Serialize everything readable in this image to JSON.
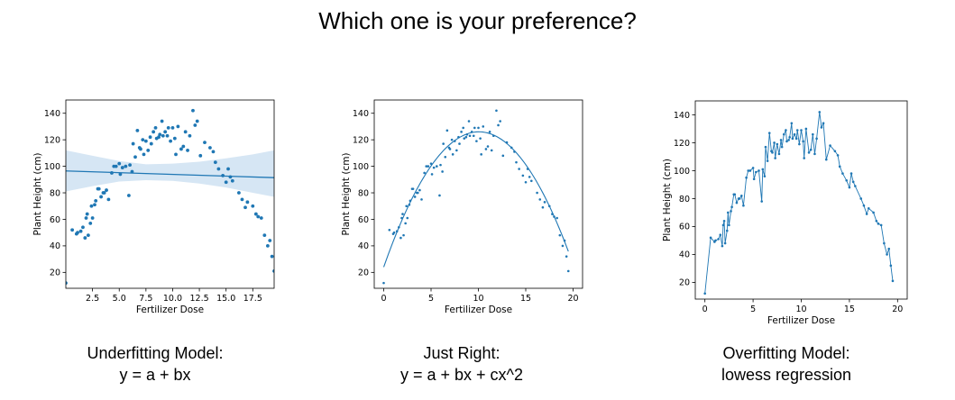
{
  "page": {
    "title": "Which one is your preference?"
  },
  "colors": {
    "points": "#1f77b4",
    "band": "#d6e6f4",
    "line": "#1f77b4"
  },
  "chart_data": [
    {
      "type": "scatter",
      "variant": "linear-regression-with-confidence-band",
      "title": "",
      "xlabel": "Fertilizer Dose",
      "ylabel": "Plant Height (cm)",
      "xlim": [
        0,
        19.5
      ],
      "ylim": [
        8,
        150
      ],
      "xticks": [
        2.5,
        5.0,
        7.5,
        10.0,
        12.5,
        15.0,
        17.5
      ],
      "xtick_labels": [
        "2.5",
        "5.0",
        "7.5",
        "10.0",
        "12.5",
        "15.0",
        "17.5"
      ],
      "yticks": [
        20,
        40,
        60,
        80,
        100,
        120,
        140
      ],
      "ytick_labels": [
        "20",
        "40",
        "60",
        "80",
        "100",
        "120",
        "140"
      ],
      "fit": {
        "intercept": 96.5,
        "slope": -0.26
      },
      "band": {
        "x": [
          0,
          2.5,
          5,
          7.5,
          10,
          12.5,
          15,
          17.5,
          19.5
        ],
        "upper": [
          112,
          108,
          104,
          101.5,
          102,
          103.5,
          106,
          109,
          112
        ],
        "lower": [
          81,
          85,
          88.5,
          89.5,
          89,
          87,
          84,
          80,
          77
        ]
      },
      "caption": [
        "Underfitting Model:",
        "y = a + bx"
      ]
    },
    {
      "type": "scatter",
      "variant": "quadratic-fit",
      "title": "",
      "xlabel": "Fertilizer Dose",
      "ylabel": "Plant Height (cm)",
      "xlim": [
        -1,
        21
      ],
      "ylim": [
        8,
        150
      ],
      "xticks": [
        0,
        5,
        10,
        15,
        20
      ],
      "xtick_labels": [
        "0",
        "5",
        "10",
        "15",
        "20"
      ],
      "yticks": [
        20,
        40,
        60,
        80,
        100,
        120,
        140
      ],
      "ytick_labels": [
        "20",
        "40",
        "60",
        "80",
        "100",
        "120",
        "140"
      ],
      "fit": {
        "a": 24,
        "b": 20.3,
        "c": -1.01,
        "x0": 0,
        "x1": 19.5
      },
      "caption": [
        "Just Right:",
        "y = a + bx + cx^2"
      ]
    },
    {
      "type": "line",
      "variant": "lowess-connected-points",
      "title": "",
      "xlabel": "Fertilizer Dose",
      "ylabel": "Plant Height (cm)",
      "xlim": [
        -1,
        21
      ],
      "ylim": [
        8,
        150
      ],
      "xticks": [
        0,
        5,
        10,
        15,
        20
      ],
      "xtick_labels": [
        "0",
        "5",
        "10",
        "15",
        "20"
      ],
      "yticks": [
        20,
        40,
        60,
        80,
        100,
        120,
        140
      ],
      "ytick_labels": [
        "20",
        "40",
        "60",
        "80",
        "100",
        "120",
        "140"
      ],
      "caption": [
        "Overfitting Model:",
        "lowess regression"
      ]
    }
  ],
  "points": {
    "x": [
      0,
      0.6,
      1.0,
      1.1,
      1.4,
      1.6,
      1.8,
      1.9,
      2.0,
      2.1,
      2.3,
      2.4,
      2.5,
      2.7,
      2.8,
      3.0,
      3.1,
      3.3,
      3.5,
      3.6,
      3.8,
      4.0,
      4.3,
      4.5,
      4.7,
      5.0,
      5.1,
      5.3,
      5.6,
      5.9,
      6.0,
      6.2,
      6.3,
      6.5,
      6.7,
      6.9,
      7.0,
      7.2,
      7.3,
      7.5,
      7.7,
      7.9,
      8.0,
      8.2,
      8.4,
      8.5,
      8.7,
      8.8,
      9.0,
      9.1,
      9.3,
      9.5,
      9.6,
      9.8,
      10.0,
      10.2,
      10.3,
      10.5,
      10.8,
      11.0,
      11.2,
      11.4,
      11.6,
      11.9,
      12.1,
      12.3,
      12.6,
      13.0,
      13.5,
      13.8,
      14.0,
      14.3,
      14.7,
      15.0,
      15.2,
      15.4,
      15.6,
      16.2,
      16.5,
      16.8,
      17.0,
      17.5,
      17.8,
      18.0,
      18.3,
      18.6,
      18.9,
      19.1,
      19.3,
      19.5
    ],
    "y": [
      12,
      52,
      49,
      50,
      51,
      54,
      46,
      61,
      64,
      48,
      57,
      70,
      61,
      71,
      74,
      83,
      83,
      77,
      80,
      80,
      82,
      75,
      95,
      100,
      100,
      102,
      94,
      99,
      100,
      78,
      101,
      96,
      117,
      107,
      127,
      114,
      113,
      120,
      109,
      119,
      112,
      122,
      117,
      126,
      129,
      121,
      122,
      124,
      134,
      123,
      126,
      123,
      129,
      119,
      129,
      121,
      109,
      130,
      113,
      115,
      126,
      112,
      123,
      142,
      131,
      134,
      108,
      118,
      114,
      111,
      103,
      98,
      93,
      88,
      98,
      92,
      89,
      80,
      75,
      69,
      73,
      70,
      64,
      62,
      61,
      48,
      40,
      44,
      32,
      21
    ]
  }
}
